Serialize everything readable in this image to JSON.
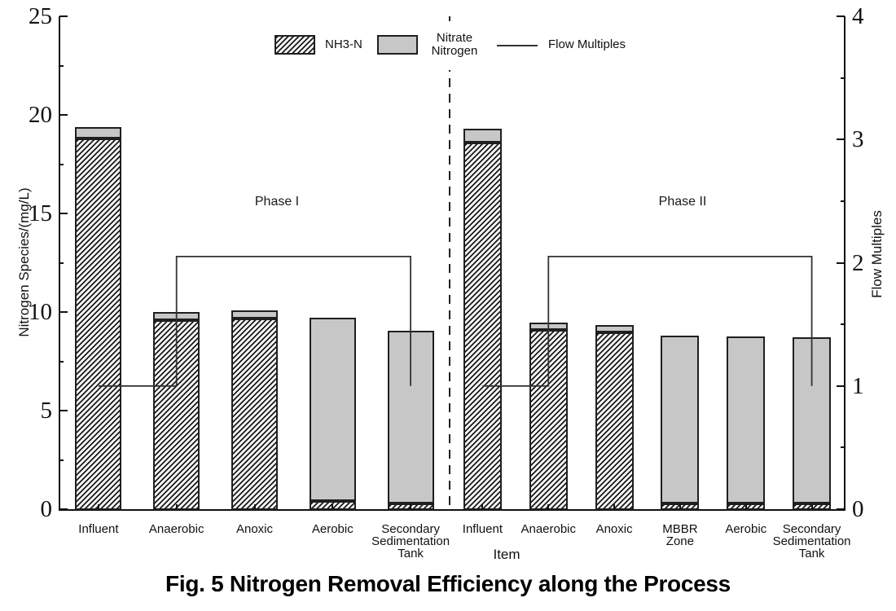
{
  "caption": "Fig. 5 Nitrogen Removal Efficiency along the Process",
  "chart_data": {
    "type": "bar",
    "stacked": true,
    "grid": false,
    "xlabel": "Item",
    "left_axis": {
      "label": "Nitrogen Species/(mg/L)",
      "range": [
        0,
        25
      ],
      "major_ticks": [
        0,
        5,
        10,
        15,
        20,
        25
      ],
      "minor_ticks": [
        2.5,
        7.5,
        12.5,
        17.5,
        22.5
      ]
    },
    "right_axis": {
      "label": "Flow Multiples",
      "range": [
        0,
        4
      ],
      "major_ticks": [
        0,
        1,
        2,
        3,
        4
      ],
      "minor_ticks": [
        0.5,
        1.5,
        2.5,
        3.5
      ]
    },
    "legend": {
      "position": "top-center",
      "items": [
        {
          "label": "NH3-N",
          "swatch": "hatched-box"
        },
        {
          "label": "Nitrate Nitrogen",
          "swatch": "gray-box"
        },
        {
          "label": "Flow Multiples",
          "swatch": "line"
        }
      ]
    },
    "phases": [
      {
        "name": "Phase I",
        "categories": [
          "Influent",
          "Anaerobic",
          "Anoxic",
          "Aerobic",
          "Secondary Sedimentation Tank"
        ],
        "series": [
          {
            "name": "NH3-N",
            "values": [
              18.8,
              9.6,
              9.65,
              0.4,
              0.3
            ]
          },
          {
            "name": "Nitrate Nitrogen",
            "values": [
              0.6,
              0.4,
              0.45,
              9.3,
              8.75
            ]
          }
        ],
        "flow_multiples_step_points": [
          [
            0,
            1.0
          ],
          [
            1,
            1.0
          ],
          [
            1,
            2.05
          ],
          [
            4,
            2.05
          ],
          [
            4,
            1.0
          ]
        ]
      },
      {
        "name": "Phase II",
        "categories": [
          "Influent",
          "Anaerobic",
          "Anoxic",
          "MBBR Zone",
          "Aerobic",
          "Secondary Sedimentation Tank"
        ],
        "series": [
          {
            "name": "NH3-N",
            "values": [
              18.6,
              9.1,
              8.95,
              0.3,
              0.27,
              0.3
            ]
          },
          {
            "name": "Nitrate Nitrogen",
            "values": [
              0.7,
              0.37,
              0.37,
              8.5,
              8.5,
              8.4
            ]
          }
        ],
        "flow_multiples_step_points": [
          [
            0,
            1.0
          ],
          [
            1,
            1.0
          ],
          [
            1,
            2.05
          ],
          [
            5,
            2.05
          ],
          [
            5,
            1.0
          ]
        ]
      }
    ],
    "colors": {
      "nitrate_fill": "#c7c7c7",
      "bar_border": "#1f1f1f",
      "hatch_stroke": "#1a1a1a",
      "flow_line": "#333333",
      "divider": "#222222"
    }
  }
}
